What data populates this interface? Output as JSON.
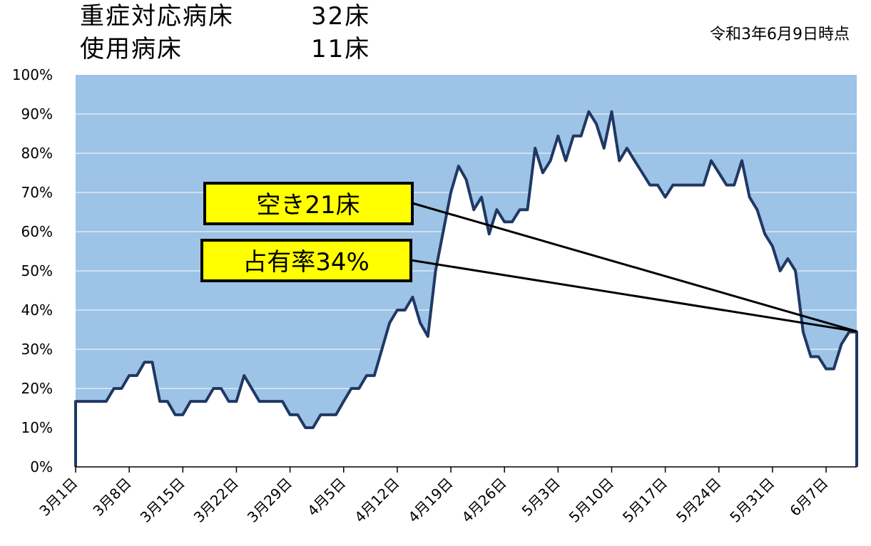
{
  "header": {
    "severe_beds_label": "重症対応病床",
    "severe_beds_value": "32床",
    "used_beds_label": "使用病床",
    "used_beds_value": "11床",
    "as_of": "令和3年6月9日時点"
  },
  "annotations": {
    "vacant": "空き21床",
    "occupancy": "占有率34%"
  },
  "colors": {
    "area_fill": "#9dc3e6",
    "line": "#1f3864",
    "callout_fill": "#ffff00"
  },
  "chart_data": {
    "type": "area",
    "ylim": [
      0,
      100
    ],
    "yticks": [
      "0%",
      "10%",
      "20%",
      "30%",
      "40%",
      "50%",
      "60%",
      "70%",
      "80%",
      "90%",
      "100%"
    ],
    "xtick_labels": [
      "3月1日",
      "3月8日",
      "3月15日",
      "3月22日",
      "3月29日",
      "4月5日",
      "4月12日",
      "4月19日",
      "4月26日",
      "5月3日",
      "5月10日",
      "5月17日",
      "5月24日",
      "5月31日",
      "6月7日"
    ],
    "x_start": "3月1日",
    "x_end": "6月9日",
    "grid": true,
    "series": [
      {
        "values": [
          16.7,
          16.7,
          16.7,
          16.7,
          16.7,
          20,
          20,
          23.3,
          23.3,
          26.7,
          26.7,
          16.7,
          16.7,
          13.3,
          13.3,
          16.7,
          16.7,
          16.7,
          20,
          20,
          16.7,
          16.7,
          23.3,
          20,
          16.7,
          16.7,
          16.7,
          16.7,
          13.3,
          13.3,
          10,
          10,
          13.3,
          13.3,
          13.3,
          16.7,
          20,
          20,
          23.3,
          23.3,
          30,
          36.7,
          40,
          40,
          43.3,
          36.7,
          33.3,
          50,
          60,
          70,
          76.7,
          73.3,
          65.6,
          68.8,
          59.4,
          65.6,
          62.5,
          62.5,
          65.6,
          65.6,
          81.3,
          75,
          78.1,
          84.4,
          78.1,
          84.4,
          84.4,
          90.6,
          87.5,
          81.3,
          90.6,
          78.1,
          81.3,
          78.1,
          75,
          71.9,
          71.9,
          68.8,
          71.9,
          71.9,
          71.9,
          71.9,
          71.9,
          78.1,
          75,
          71.9,
          71.9,
          78.1,
          68.8,
          65.6,
          59.4,
          56.3,
          50,
          53.1,
          50,
          34.4,
          28.1,
          28.1,
          25,
          25,
          31.3,
          34.4,
          34.4
        ]
      }
    ]
  }
}
